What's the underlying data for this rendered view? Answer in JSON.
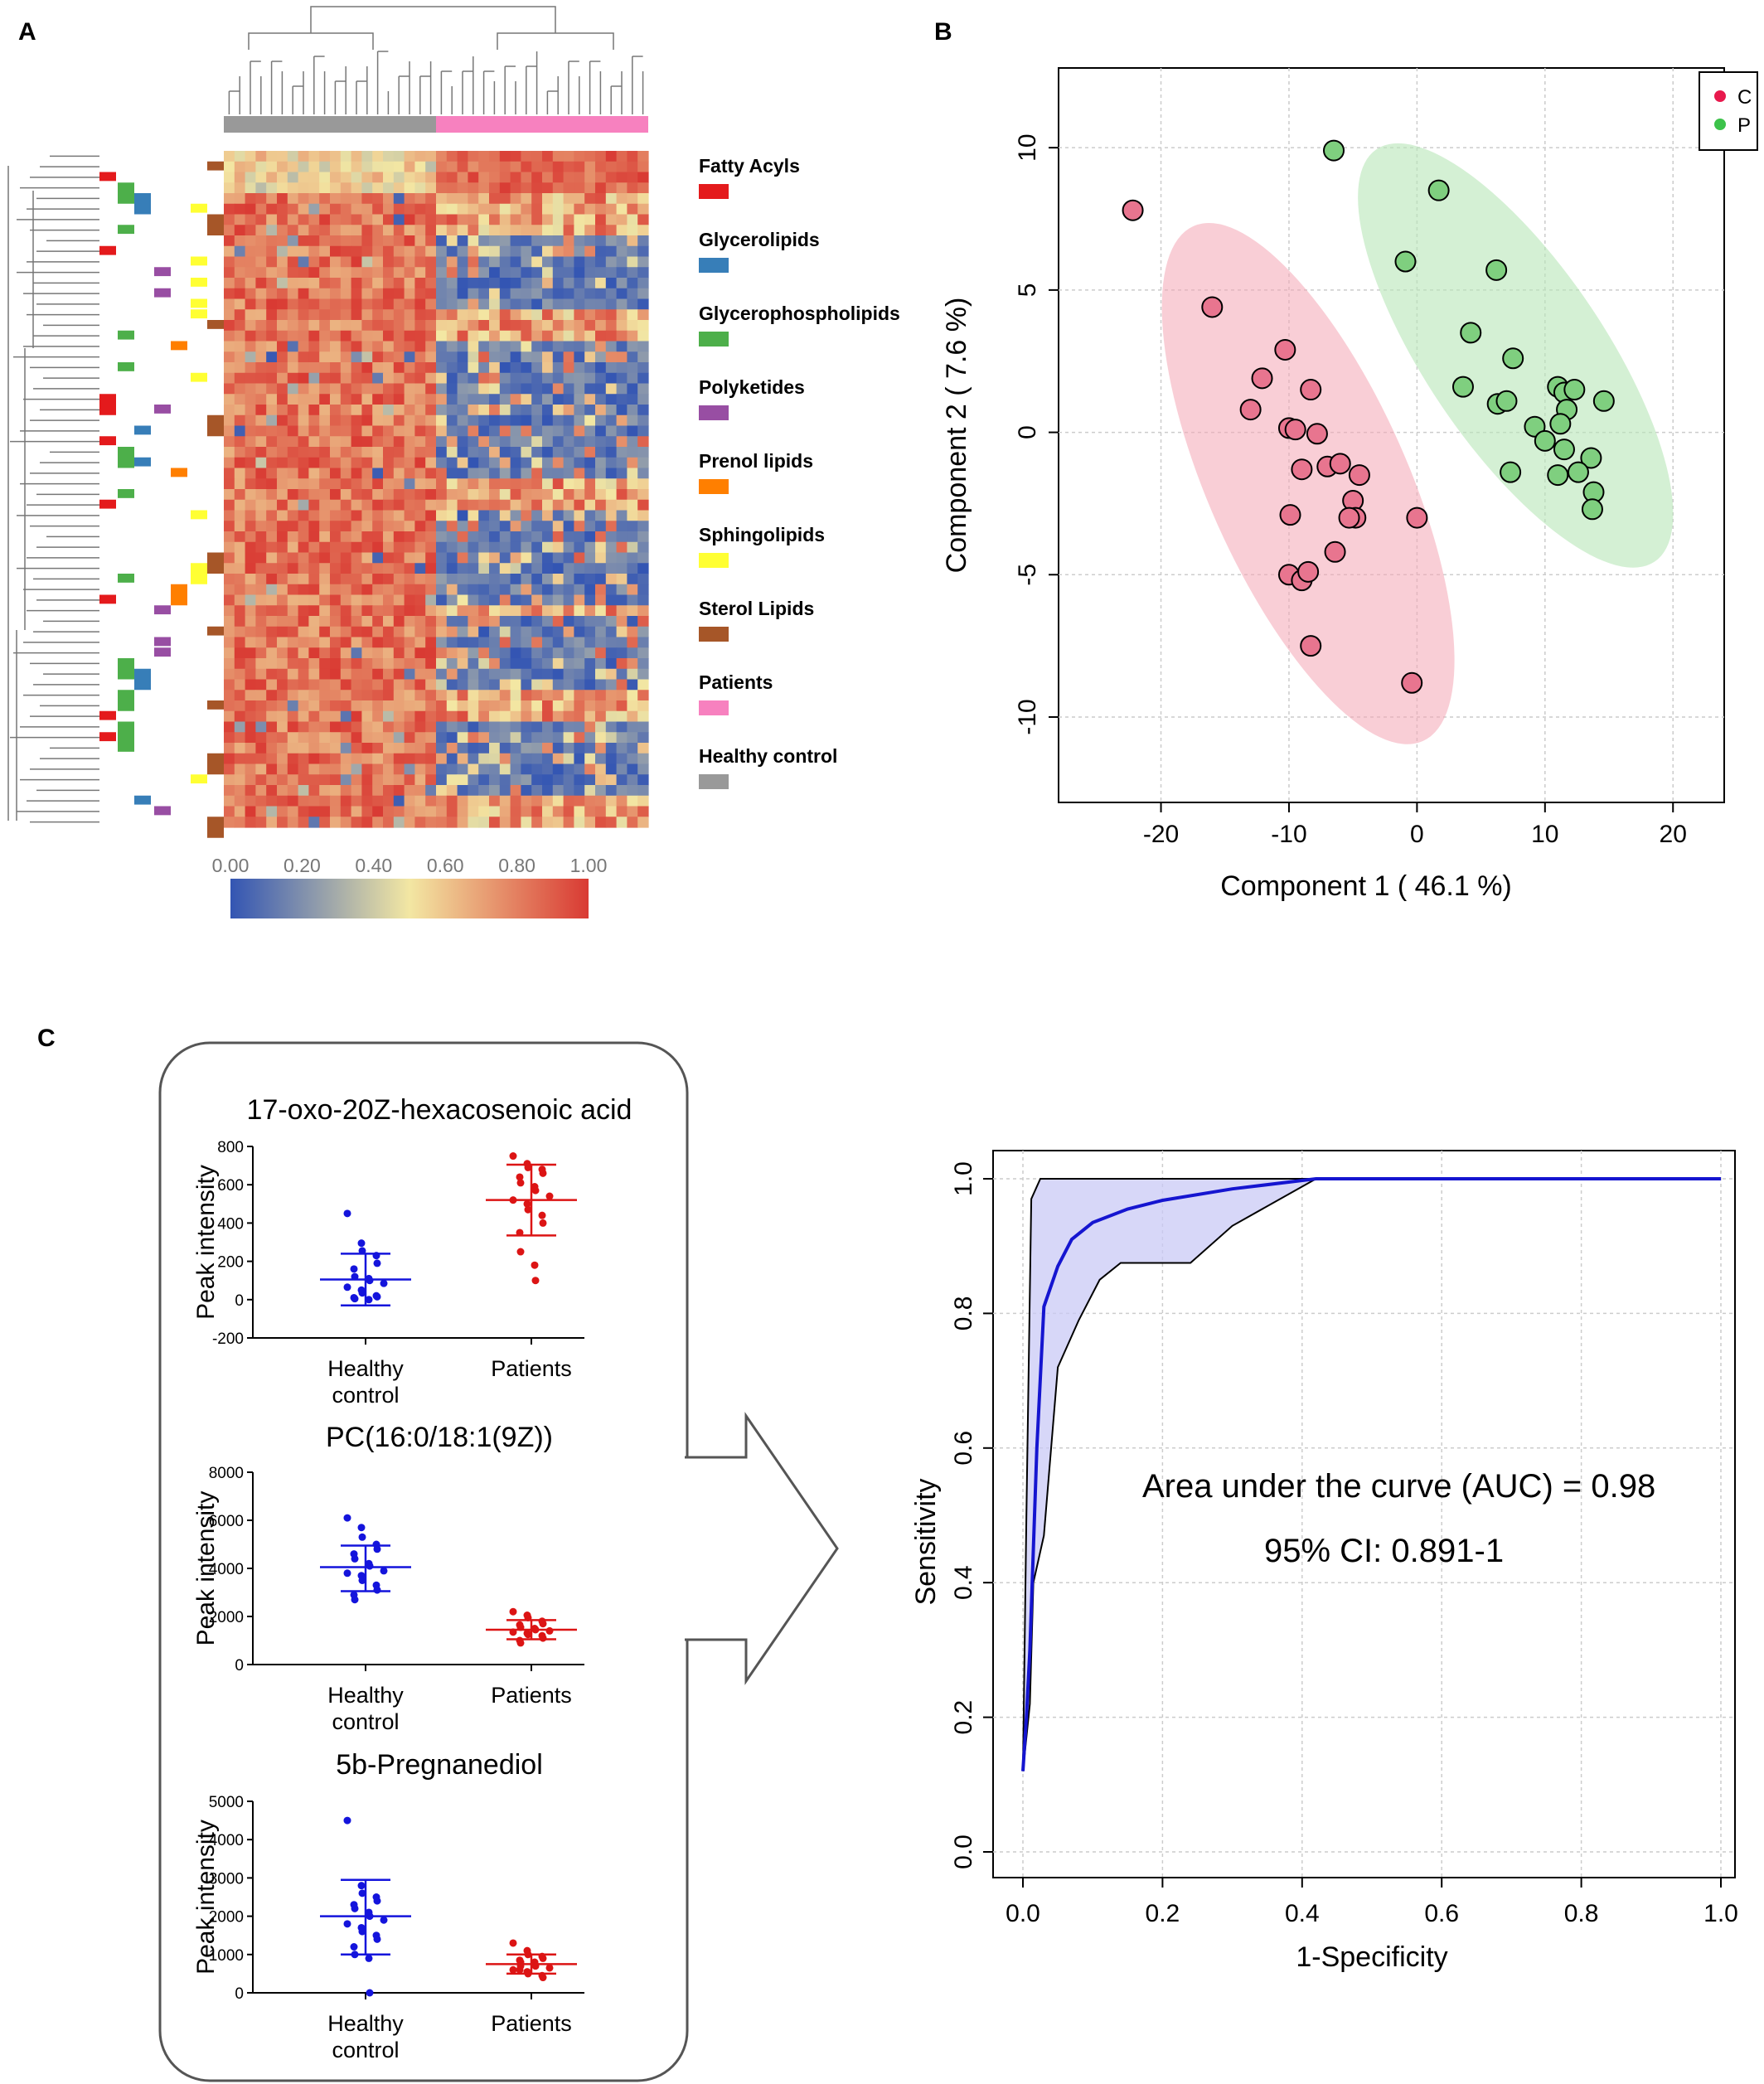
{
  "panels": {
    "a": "A",
    "b": "B",
    "c": "C"
  },
  "chart_data": [
    {
      "type": "heatmap",
      "panel": "A",
      "column_groups": [
        "Healthy control",
        "Patients"
      ],
      "colorbar": {
        "ticks": [
          "0.00",
          "0.20",
          "0.40",
          "0.60",
          "0.80",
          "1.00"
        ],
        "colors": [
          "#3355b3",
          "#f3e7a3",
          "#d93a33"
        ]
      },
      "legend": [
        {
          "label": "Fatty Acyls",
          "color": "#e41a1c"
        },
        {
          "label": "Glycerolipids",
          "color": "#377eb8"
        },
        {
          "label": "Glycerophospholipids",
          "color": "#4daf4a"
        },
        {
          "label": "Polyketides",
          "color": "#984ea3"
        },
        {
          "label": "Prenol lipids",
          "color": "#ff7f00"
        },
        {
          "label": "Sphingolipids",
          "color": "#ffff33"
        },
        {
          "label": "Sterol Lipids",
          "color": "#a65628"
        },
        {
          "label": "Patients",
          "color": "#f781bf"
        },
        {
          "label": "Healthy control",
          "color": "#999999"
        }
      ]
    },
    {
      "type": "scatter",
      "panel": "B",
      "xlabel": "Component 1 ( 46.1 %)",
      "ylabel": "Component 2 ( 7.6 %)",
      "xlim": [
        -28,
        24
      ],
      "ylim": [
        -13,
        12.8
      ],
      "xticks": [
        "-20",
        "-10",
        "0",
        "10",
        "20"
      ],
      "yticks": [
        "10",
        "5",
        "0",
        "-5",
        "-10"
      ],
      "grid": true,
      "legend_position": "top-right",
      "series": [
        {
          "name": "C",
          "color": "#e8758f",
          "points": [
            [
              -22.2,
              7.8
            ],
            [
              -16,
              4.4
            ],
            [
              -12.1,
              1.9
            ],
            [
              -13,
              0.8
            ],
            [
              -10.3,
              2.9
            ],
            [
              -8.3,
              1.5
            ],
            [
              -10,
              0.15
            ],
            [
              -9.5,
              0.1
            ],
            [
              -7.8,
              -0.05
            ],
            [
              -7,
              -1.2
            ],
            [
              -6,
              -1.1
            ],
            [
              -9,
              -1.3
            ],
            [
              -4.5,
              -1.5
            ],
            [
              -5,
              -2.4
            ],
            [
              -4.8,
              -3
            ],
            [
              -5.3,
              -3
            ],
            [
              -9.9,
              -2.9
            ],
            [
              -6.4,
              -4.2
            ],
            [
              -10,
              -5
            ],
            [
              -9,
              -5.2
            ],
            [
              -8.5,
              -4.9
            ],
            [
              -8.3,
              -7.5
            ],
            [
              0,
              -3
            ],
            [
              -0.4,
              -8.8
            ]
          ]
        },
        {
          "name": "P",
          "color": "#7fcf7f",
          "points": [
            [
              -6.5,
              9.9
            ],
            [
              1.7,
              8.5
            ],
            [
              -0.9,
              6
            ],
            [
              6.2,
              5.7
            ],
            [
              4.2,
              3.5
            ],
            [
              7.5,
              2.6
            ],
            [
              3.6,
              1.6
            ],
            [
              6.3,
              1
            ],
            [
              7,
              1.1
            ],
            [
              11,
              1.6
            ],
            [
              11.5,
              1.4
            ],
            [
              12.3,
              1.5
            ],
            [
              11.7,
              0.8
            ],
            [
              14.6,
              1.1
            ],
            [
              9.2,
              0.2
            ],
            [
              11.2,
              0.3
            ],
            [
              10,
              -0.3
            ],
            [
              11.5,
              -0.6
            ],
            [
              13.6,
              -0.9
            ],
            [
              7.3,
              -1.4
            ],
            [
              11,
              -1.5
            ],
            [
              12.6,
              -1.4
            ],
            [
              13.8,
              -2.1
            ],
            [
              13.7,
              -2.7
            ]
          ]
        }
      ]
    },
    {
      "type": "scatter",
      "panel": "C",
      "title": "17-oxo-20Z-hexacosenoic acid",
      "ylabel": "Peak intensity",
      "categories": [
        "Healthy control",
        "Patients"
      ],
      "ylim": [
        -200,
        800
      ],
      "yticks": [
        "800",
        "600",
        "400",
        "200",
        "0",
        "-200"
      ],
      "series": [
        {
          "name": "Healthy control",
          "color": "#1414dc",
          "mean": 105,
          "sd_low": -30,
          "sd_high": 240,
          "values": [
            450,
            295,
            255,
            230,
            190,
            160,
            120,
            110,
            100,
            85,
            65,
            50,
            35,
            20,
            15,
            10,
            5,
            0
          ]
        },
        {
          "name": "Patients",
          "color": "#dc1414",
          "mean": 520,
          "sd_low": 335,
          "sd_high": 705,
          "values": [
            750,
            710,
            690,
            680,
            660,
            640,
            610,
            590,
            570,
            540,
            520,
            500,
            470,
            440,
            400,
            350,
            250,
            180,
            100
          ]
        }
      ]
    },
    {
      "type": "scatter",
      "panel": "C",
      "title": "PC(16:0/18:1(9Z))",
      "ylabel": "Peak intensity",
      "categories": [
        "Healthy control",
        "Patients"
      ],
      "ylim": [
        0,
        8000
      ],
      "yticks": [
        "8000",
        "6000",
        "4000",
        "2000",
        "0"
      ],
      "series": [
        {
          "name": "Healthy control",
          "color": "#1414dc",
          "mean": 4050,
          "sd_low": 3050,
          "sd_high": 4950,
          "values": [
            6100,
            5700,
            5300,
            5000,
            4800,
            4600,
            4400,
            4200,
            4100,
            3900,
            3800,
            3700,
            3500,
            3300,
            3100,
            2900,
            2700
          ]
        },
        {
          "name": "Patients",
          "color": "#dc1414",
          "mean": 1450,
          "sd_low": 1050,
          "sd_high": 1850,
          "values": [
            2200,
            2050,
            1950,
            1800,
            1700,
            1650,
            1550,
            1500,
            1450,
            1400,
            1350,
            1300,
            1250,
            1200,
            1100,
            1000,
            900
          ]
        }
      ]
    },
    {
      "type": "scatter",
      "panel": "C",
      "title": "5b-Pregnanediol",
      "ylabel": "Peak intensity",
      "categories": [
        "Healthy control",
        "Patients"
      ],
      "ylim": [
        0,
        5000
      ],
      "yticks": [
        "5000",
        "4000",
        "3000",
        "2000",
        "1000",
        "0"
      ],
      "series": [
        {
          "name": "Healthy control",
          "color": "#1414dc",
          "mean": 2000,
          "sd_low": 1000,
          "sd_high": 2950,
          "values": [
            4500,
            2800,
            2600,
            2500,
            2400,
            2300,
            2200,
            2100,
            2000,
            1900,
            1800,
            1700,
            1600,
            1500,
            1400,
            1200,
            1000,
            900,
            0
          ]
        },
        {
          "name": "Patients",
          "color": "#dc1414",
          "mean": 750,
          "sd_low": 500,
          "sd_high": 1000,
          "values": [
            1300,
            1100,
            1000,
            950,
            900,
            850,
            800,
            750,
            700,
            650,
            600,
            550,
            500,
            450,
            400,
            600,
            700,
            800
          ]
        }
      ]
    },
    {
      "type": "line",
      "panel": "C",
      "xlabel": "1-Specificity",
      "ylabel": "Sensitivity",
      "xlim": [
        0,
        1
      ],
      "ylim": [
        0,
        1
      ],
      "xticks": [
        "0.0",
        "0.2",
        "0.4",
        "0.6",
        "0.8",
        "1.0"
      ],
      "yticks": [
        "0.0",
        "0.2",
        "0.4",
        "0.6",
        "0.8",
        "1.0"
      ],
      "grid": true,
      "annotations": [
        "Area under the curve (AUC) = 0.98",
        "95% CI: 0.891-1"
      ],
      "roc": [
        [
          0,
          0.12
        ],
        [
          0.005,
          0.2
        ],
        [
          0.01,
          0.3
        ],
        [
          0.015,
          0.45
        ],
        [
          0.02,
          0.6
        ],
        [
          0.03,
          0.81
        ],
        [
          0.05,
          0.87
        ],
        [
          0.07,
          0.91
        ],
        [
          0.1,
          0.935
        ],
        [
          0.15,
          0.955
        ],
        [
          0.2,
          0.968
        ],
        [
          0.3,
          0.985
        ],
        [
          0.42,
          1
        ],
        [
          1,
          1
        ]
      ],
      "ci_upper": [
        [
          0,
          0.12
        ],
        [
          0.005,
          0.5
        ],
        [
          0.012,
          0.97
        ],
        [
          0.025,
          1
        ],
        [
          1,
          1
        ]
      ],
      "ci_lower": [
        [
          0,
          0.12
        ],
        [
          0.01,
          0.22
        ],
        [
          0.015,
          0.4
        ],
        [
          0.03,
          0.47
        ],
        [
          0.05,
          0.72
        ],
        [
          0.08,
          0.79
        ],
        [
          0.11,
          0.85
        ],
        [
          0.14,
          0.875
        ],
        [
          0.24,
          0.875
        ],
        [
          0.3,
          0.93
        ],
        [
          0.42,
          1
        ],
        [
          1,
          1
        ]
      ]
    }
  ]
}
